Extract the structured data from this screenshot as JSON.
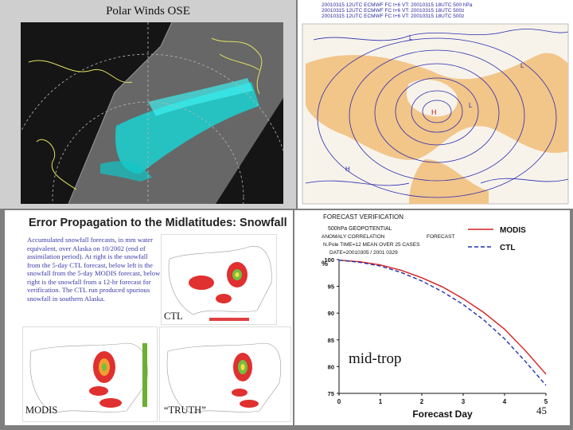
{
  "satellite_panel": {
    "title": "Polar Winds OSE"
  },
  "map_panel": {
    "header": [
      "20010315 12UTC ECMWF  FC t+6 VT: 20010315 18UTC 500 hPa",
      "20010315 12UTC ECMWF  FC t+6 VT: 20010315 18UTC 500z",
      "20010315 12UTC ECMWF  FC t+6 VT: 20010315 18UTC 500z"
    ]
  },
  "doc_panel": {
    "title": "Error Propagation to the Midlatitudes: Snowfall",
    "body": "Accumulated snowfall forecasts, in mm water equivalent, over Alaska on 10/2002 (end of assimilation period). At right is the snowfall from the 5-day CTL forecast, below left is the snowfall from the 5-day MODIS forecast, below right is the snowfall from a 12-hr forecast for verification. The CTL run produced spurious snowfall in southern Alaska.",
    "labels": {
      "ctl": "CTL",
      "modis": "MODIS",
      "truth": "“TRUTH”"
    }
  },
  "chart_panel": {
    "header": {
      "line1": "FORECAST VERIFICATION",
      "line2": "500hPa GEOPOTENTIAL",
      "line3": "ANOMALY CORRELATION",
      "line3b": "FORECAST",
      "line4": "N.Pole  TIME=12  MEAN OVER 25 CASES",
      "line5": "DATE=20010305 / 2001 0329"
    },
    "annotation": "mid-trop"
  },
  "chart_data": {
    "type": "line",
    "title": "FORECAST VERIFICATION",
    "xlabel": "Forecast Day",
    "ylabel": "%",
    "xlim": [
      0,
      5
    ],
    "ylim": [
      75,
      100
    ],
    "x_ticks": [
      "0",
      "1",
      "2",
      "3",
      "4",
      "5"
    ],
    "y_ticks": [
      "75",
      "80",
      "85",
      "90",
      "95",
      "100"
    ],
    "x": [
      0,
      0.5,
      1,
      1.5,
      2,
      2.5,
      3,
      3.5,
      4,
      4.5,
      5
    ],
    "series": [
      {
        "name": "MODIS",
        "color": "#d42020",
        "dash": false,
        "values": [
          99.9,
          99.6,
          99.0,
          98.0,
          96.6,
          94.9,
          92.7,
          90.1,
          87.0,
          83.0,
          78.6
        ]
      },
      {
        "name": "CTL",
        "color": "#2030b0",
        "dash": true,
        "values": [
          99.9,
          99.5,
          98.8,
          97.6,
          96.0,
          94.0,
          91.6,
          88.7,
          85.2,
          81.0,
          76.5
        ]
      }
    ],
    "legend": "top-right"
  },
  "slide": {
    "number": "45"
  }
}
